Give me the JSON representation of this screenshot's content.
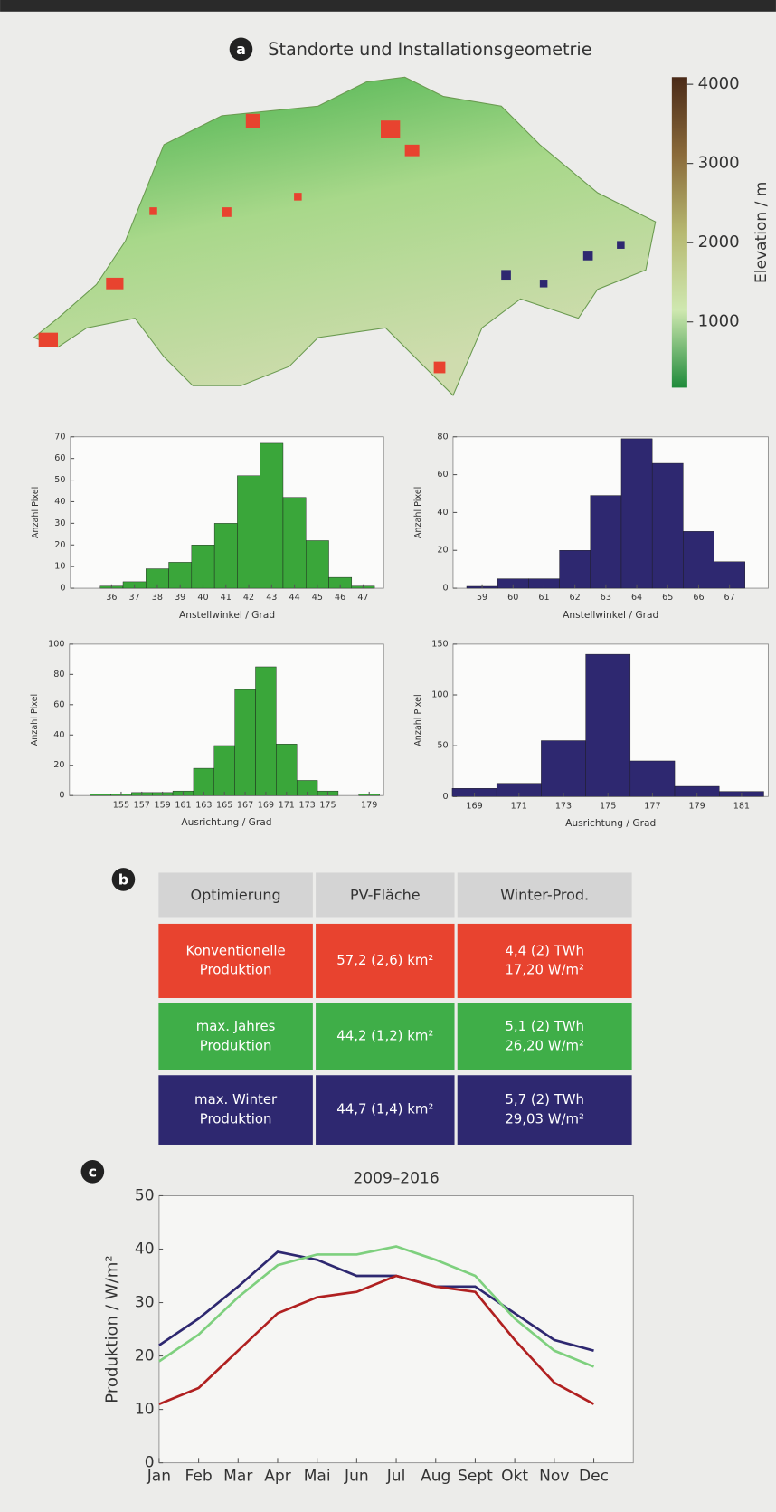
{
  "map": {
    "label": "a",
    "title": "Standorte und Installationsgeometrie",
    "colorbar": {
      "label": "Elevation / m",
      "lim": [
        170,
        4090
      ],
      "ticks": [
        1000,
        2000,
        3000,
        4000
      ]
    }
  },
  "chart_data": [
    {
      "type": "histogram",
      "xlabel": "Anstellwinkel / Grad",
      "ylabel": "Anzahl Pixel",
      "color": "#3aa63a",
      "bins": [
        35.5,
        36.5,
        37.5,
        38.5,
        39.5,
        40.5,
        41.5,
        42.5,
        43.5,
        44.5,
        45.5,
        46.5,
        47.5
      ],
      "values": [
        1,
        3,
        9,
        12,
        20,
        30,
        52,
        67,
        42,
        22,
        5,
        1
      ],
      "xlim": [
        34.2,
        47.9
      ],
      "xticks": [
        36,
        37,
        38,
        39,
        40,
        41,
        42,
        43,
        44,
        45,
        46,
        47
      ],
      "ylim": [
        0,
        70
      ],
      "yticks": [
        0,
        10,
        20,
        30,
        40,
        50,
        60,
        70
      ]
    },
    {
      "type": "histogram",
      "xlabel": "Anstellwinkel / Grad",
      "ylabel": "Anzahl Pixel",
      "color": "#2e2870",
      "bins": [
        58.5,
        59.5,
        60.5,
        61.5,
        62.5,
        63.5,
        64.5,
        65.5,
        66.5,
        67.5
      ],
      "values": [
        1,
        5,
        5,
        20,
        49,
        79,
        66,
        30,
        14
      ],
      "xlim": [
        58.06,
        68.25
      ],
      "xticks": [
        59,
        60,
        61,
        62,
        63,
        64,
        65,
        66,
        67
      ],
      "ylim": [
        0,
        80
      ],
      "yticks": [
        0,
        20,
        40,
        60,
        80
      ]
    },
    {
      "type": "histogram",
      "xlabel": "Ausrichtung / Grad",
      "ylabel": "Anzahl Pixel",
      "color": "#3aa63a",
      "bins": [
        152,
        154,
        156,
        158,
        160,
        162,
        164,
        166,
        168,
        170,
        172,
        174,
        176,
        178,
        180
      ],
      "values": [
        1,
        1,
        2,
        2,
        3,
        18,
        33,
        70,
        85,
        34,
        10,
        3,
        0,
        1
      ],
      "xlim": [
        150,
        180.4
      ],
      "xticks": [
        155,
        157,
        159,
        161,
        163,
        165,
        167,
        169,
        171,
        173,
        175,
        179
      ],
      "ylim": [
        0,
        100
      ],
      "yticks": [
        0,
        20,
        40,
        60,
        80,
        100
      ]
    },
    {
      "type": "histogram",
      "xlabel": "Ausrichtung / Grad",
      "ylabel": "Anzahl Pixel",
      "color": "#2e2870",
      "bins": [
        168,
        170,
        172,
        174,
        176,
        178,
        180,
        182
      ],
      "values": [
        8,
        13,
        55,
        140,
        35,
        10,
        5
      ],
      "xlim": [
        168.04,
        182.2
      ],
      "xticks": [
        169,
        171,
        173,
        175,
        177,
        179,
        181
      ],
      "ylim": [
        0,
        150
      ],
      "yticks": [
        0,
        50,
        100,
        150
      ]
    },
    {
      "type": "line",
      "label": "c",
      "title": "2009–2016",
      "ylabel": "Produktion / W/m²",
      "categories": [
        "Jan",
        "Feb",
        "Mar",
        "Apr",
        "Mai",
        "Jun",
        "Jul",
        "Aug",
        "Sept",
        "Okt",
        "Nov",
        "Dec"
      ],
      "series": [
        {
          "color": "#2e2870",
          "values": [
            22,
            27,
            33,
            39.5,
            38,
            35,
            35,
            33,
            33,
            28,
            23,
            21
          ]
        },
        {
          "color": "#7ed07e",
          "values": [
            19,
            24,
            31,
            37,
            39,
            39,
            40.5,
            38,
            35,
            27,
            21,
            18
          ]
        },
        {
          "color": "#b02020",
          "values": [
            11,
            14,
            21,
            28,
            31,
            32,
            35,
            33,
            32,
            23,
            15,
            11
          ]
        }
      ],
      "ylim": [
        0,
        50
      ],
      "yticks": [
        0,
        10,
        20,
        30,
        40,
        50
      ]
    }
  ],
  "table": {
    "label": "b",
    "header": [
      "Optimierung",
      "PV-Fläche",
      "Winter-Prod."
    ],
    "rows": [
      {
        "color": "#e8432f",
        "cells": [
          [
            "Konventionelle",
            "Produktion"
          ],
          [
            "57,2 (2,6) km²"
          ],
          [
            "4,4 (2) TWh",
            "17,20 W/m²"
          ]
        ]
      },
      {
        "color": "#3fae48",
        "cells": [
          [
            "max. Jahres",
            "Produktion"
          ],
          [
            "44,2 (1,2) km²"
          ],
          [
            "5,1 (2) TWh",
            "26,20 W/m²"
          ]
        ]
      },
      {
        "color": "#2e2870",
        "cells": [
          [
            "max. Winter",
            "Produktion"
          ],
          [
            "44,7 (1,4) km²"
          ],
          [
            "5,7 (2) TWh",
            "29,03 W/m²"
          ]
        ]
      }
    ]
  }
}
